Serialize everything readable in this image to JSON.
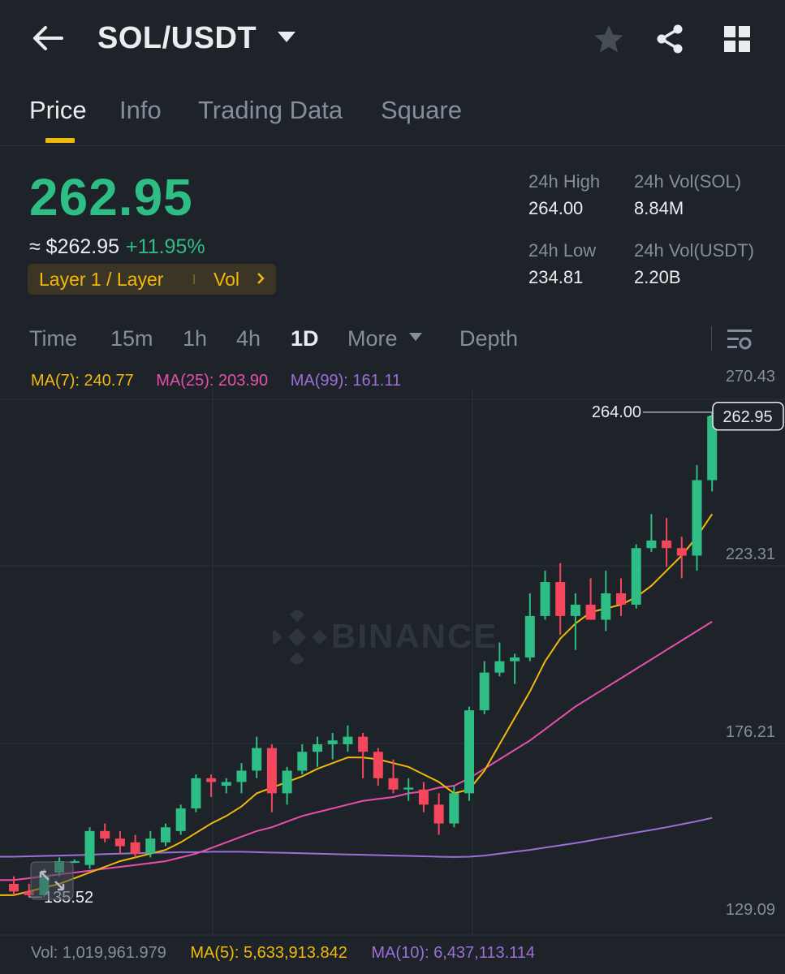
{
  "header": {
    "pair": "SOL/USDT",
    "icons": [
      "back-arrow-icon",
      "chevron-down-icon",
      "star-icon",
      "share-icon",
      "grid-icon"
    ]
  },
  "tabs": [
    {
      "label": "Price",
      "active": true
    },
    {
      "label": "Info",
      "active": false
    },
    {
      "label": "Trading Data",
      "active": false
    },
    {
      "label": "Square",
      "active": false
    }
  ],
  "ticker": {
    "last_price": "262.95",
    "usd_price": "≈ $262.95",
    "change": "+11.95%",
    "tag": "Layer 1 / Layer",
    "tag_vol": "Vol",
    "high_label": "24h High",
    "high_value": "264.00",
    "low_label": "24h Low",
    "low_value": "234.81",
    "vol_base_label": "24h Vol(SOL)",
    "vol_base_value": "8.84M",
    "vol_quote_label": "24h Vol(USDT)",
    "vol_quote_value": "2.20B"
  },
  "timeframes": {
    "time": "Time",
    "m15": "15m",
    "h1": "1h",
    "h4": "4h",
    "d1": "1D",
    "more": "More",
    "depth": "Depth",
    "active": "1D"
  },
  "indicators": {
    "ma7": "MA(7): 240.77",
    "ma25": "MA(25): 203.90",
    "ma99": "MA(99): 161.11"
  },
  "volume": {
    "vol": "Vol: 1,019,961.979",
    "ma5": "MA(5): 5,633,913.842",
    "ma10": "MA(10): 6,437,113.114"
  },
  "watermark": "BINANCE",
  "colors": {
    "up": "#2ebd85",
    "down": "#f6465d",
    "ma7": "#f0b90b",
    "ma25": "#e84fad",
    "ma99": "#9b6fd6",
    "accent": "#f0b90b"
  },
  "chart_data": {
    "type": "candlestick",
    "interval": "1D",
    "y_axis_labels": [
      "270.43",
      "223.31",
      "176.21",
      "129.09"
    ],
    "ylim": [
      129.09,
      270.43
    ],
    "last_price_label": "262.95",
    "max_label": "264.00",
    "min_label": "135.52",
    "candles": [
      {
        "o": 139,
        "h": 141,
        "l": 136,
        "c": 137
      },
      {
        "o": 137,
        "h": 139,
        "l": 135.5,
        "c": 136
      },
      {
        "o": 136,
        "h": 143,
        "l": 135.5,
        "c": 141
      },
      {
        "o": 142,
        "h": 146,
        "l": 141,
        "c": 145
      },
      {
        "o": 145,
        "h": 145.5,
        "l": 144.5,
        "c": 145
      },
      {
        "o": 144,
        "h": 154,
        "l": 143,
        "c": 153
      },
      {
        "o": 153,
        "h": 155,
        "l": 150,
        "c": 151
      },
      {
        "o": 151,
        "h": 153,
        "l": 147,
        "c": 149
      },
      {
        "o": 150,
        "h": 152,
        "l": 146,
        "c": 147
      },
      {
        "o": 147,
        "h": 153,
        "l": 146,
        "c": 151
      },
      {
        "o": 150,
        "h": 155,
        "l": 149,
        "c": 154
      },
      {
        "o": 153,
        "h": 160,
        "l": 152,
        "c": 159
      },
      {
        "o": 159,
        "h": 168,
        "l": 158,
        "c": 167
      },
      {
        "o": 167,
        "h": 168,
        "l": 162,
        "c": 166
      },
      {
        "o": 165,
        "h": 167,
        "l": 163,
        "c": 166
      },
      {
        "o": 166,
        "h": 171,
        "l": 163,
        "c": 169
      },
      {
        "o": 169,
        "h": 178,
        "l": 167,
        "c": 175
      },
      {
        "o": 175,
        "h": 176,
        "l": 158,
        "c": 163
      },
      {
        "o": 163,
        "h": 170,
        "l": 160,
        "c": 169
      },
      {
        "o": 169,
        "h": 176,
        "l": 168,
        "c": 174
      },
      {
        "o": 174,
        "h": 178,
        "l": 170,
        "c": 176
      },
      {
        "o": 176,
        "h": 179,
        "l": 172,
        "c": 177
      },
      {
        "o": 176,
        "h": 181,
        "l": 174,
        "c": 178
      },
      {
        "o": 178,
        "h": 179,
        "l": 167,
        "c": 174
      },
      {
        "o": 174,
        "h": 175,
        "l": 165,
        "c": 167
      },
      {
        "o": 167,
        "h": 172,
        "l": 163,
        "c": 164
      },
      {
        "o": 164,
        "h": 167,
        "l": 161,
        "c": 164.5
      },
      {
        "o": 164,
        "h": 166,
        "l": 158,
        "c": 160
      },
      {
        "o": 160,
        "h": 163,
        "l": 152,
        "c": 155
      },
      {
        "o": 155,
        "h": 165,
        "l": 154,
        "c": 163
      },
      {
        "o": 163,
        "h": 186,
        "l": 161,
        "c": 185
      },
      {
        "o": 185,
        "h": 198,
        "l": 184,
        "c": 195
      },
      {
        "o": 195,
        "h": 203,
        "l": 194,
        "c": 198
      },
      {
        "o": 198,
        "h": 200,
        "l": 192,
        "c": 199
      },
      {
        "o": 199,
        "h": 216,
        "l": 198,
        "c": 210
      },
      {
        "o": 210,
        "h": 222,
        "l": 209,
        "c": 219
      },
      {
        "o": 219,
        "h": 224,
        "l": 205,
        "c": 210
      },
      {
        "o": 210,
        "h": 216,
        "l": 201,
        "c": 213
      },
      {
        "o": 213,
        "h": 220,
        "l": 209,
        "c": 209
      },
      {
        "o": 209,
        "h": 222,
        "l": 206,
        "c": 216
      },
      {
        "o": 216,
        "h": 220,
        "l": 210,
        "c": 213
      },
      {
        "o": 213,
        "h": 229,
        "l": 212,
        "c": 228
      },
      {
        "o": 228,
        "h": 237,
        "l": 227,
        "c": 230
      },
      {
        "o": 230,
        "h": 236,
        "l": 223,
        "c": 228
      },
      {
        "o": 228,
        "h": 231,
        "l": 220,
        "c": 226
      },
      {
        "o": 226,
        "h": 250,
        "l": 222,
        "c": 246
      },
      {
        "o": 246,
        "h": 264,
        "l": 243,
        "c": 262.95
      }
    ],
    "ma7": [
      136,
      137,
      138,
      139,
      140.5,
      142,
      143.5,
      145,
      146,
      147,
      148,
      150,
      152.5,
      155,
      157,
      159.5,
      163,
      164.5,
      166,
      167.5,
      169.5,
      171,
      172.5,
      172.5,
      172,
      171,
      170,
      168,
      166,
      163,
      164,
      169,
      176,
      183,
      190,
      198,
      204,
      208,
      211,
      212,
      213,
      215,
      218,
      222,
      226,
      231,
      237
    ],
    "ma25": [
      140,
      140.5,
      141,
      141.5,
      142,
      142.5,
      143,
      143.5,
      144,
      144.5,
      145,
      146,
      147,
      148.5,
      150,
      151.5,
      153,
      154,
      155.5,
      157,
      158,
      159,
      160,
      161,
      161.5,
      162,
      163,
      163.5,
      164.5,
      165,
      167,
      169.5,
      172,
      174.5,
      177,
      180,
      183,
      186,
      188.5,
      191,
      193.5,
      196,
      198.5,
      201,
      203.5,
      206,
      208.5
    ],
    "ma99": [
      146.2,
      146.3,
      146.4,
      146.5,
      146.6,
      146.7,
      146.9,
      147,
      147.1,
      147.2,
      147.3,
      147.4,
      147.4,
      147.5,
      147.5,
      147.5,
      147.4,
      147.3,
      147.2,
      147.1,
      147,
      146.9,
      146.8,
      146.7,
      146.6,
      146.5,
      146.4,
      146.3,
      146.2,
      146.1,
      146.2,
      146.5,
      147,
      147.5,
      148,
      148.6,
      149.2,
      149.8,
      150.5,
      151.2,
      151.9,
      152.6,
      153.3,
      154,
      154.8,
      155.6,
      156.5
    ]
  }
}
